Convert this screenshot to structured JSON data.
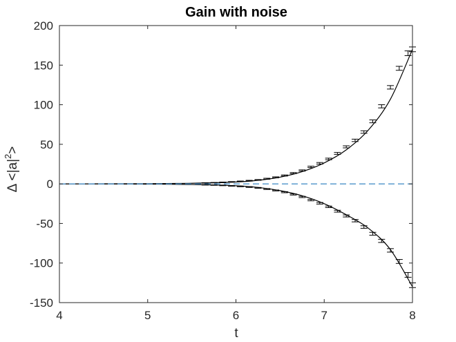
{
  "chart_data": {
    "type": "line",
    "title": "Gain with noise",
    "xlabel": "t",
    "ylabel": "Δ <|a|²>",
    "ylabel_parts": {
      "prefix": "Δ <|a|",
      "sup": "2",
      "suffix": ">"
    },
    "xlim": [
      4,
      8
    ],
    "ylim": [
      -150,
      200
    ],
    "xticks": [
      4,
      5,
      6,
      7,
      8
    ],
    "yticks": [
      -150,
      -100,
      -50,
      0,
      50,
      100,
      150,
      200
    ],
    "grid": false,
    "series": [
      {
        "style": "solid",
        "color": "#000000",
        "x": [
          4.0,
          4.5,
          5.0,
          5.5,
          6.0,
          6.25,
          6.5,
          6.75,
          7.0,
          7.25,
          7.5,
          7.75,
          8.0
        ],
        "y": [
          0.0,
          0.1,
          0.3,
          0.8,
          2.4,
          4.5,
          8.5,
          15.5,
          26.5,
          43.0,
          68.0,
          107.0,
          170.0
        ]
      },
      {
        "style": "solid",
        "color": "#000000",
        "x": [
          4.0,
          4.5,
          5.0,
          5.5,
          6.0,
          6.25,
          6.5,
          6.75,
          7.0,
          7.25,
          7.5,
          7.75,
          8.0
        ],
        "y": [
          0.0,
          -0.1,
          -0.3,
          -0.8,
          -2.4,
          -4.5,
          -8.5,
          -15.0,
          -25.0,
          -39.0,
          -56.0,
          -83.0,
          -130.0
        ]
      },
      {
        "style": "dashed",
        "color": "#4a90c8",
        "x": [
          4.0,
          8.0
        ],
        "y": [
          0.0,
          0.0
        ]
      }
    ],
    "errorbars": {
      "x": [
        5.65,
        5.75,
        5.85,
        5.95,
        6.05,
        6.15,
        6.25,
        6.35,
        6.45,
        6.55,
        6.65,
        6.75,
        6.85,
        6.95,
        7.05,
        7.15,
        7.25,
        7.35,
        7.45,
        7.55,
        7.65,
        7.75,
        7.85,
        7.95,
        8.0
      ],
      "upper": [
        1.2,
        1.5,
        1.9,
        2.5,
        3.2,
        4.0,
        5.0,
        6.5,
        8.3,
        10.6,
        13.6,
        16.9,
        21.5,
        26.0,
        31.5,
        38.5,
        46.8,
        55.0,
        65.5,
        79.0,
        98.0,
        122.0,
        146.0,
        165.0,
        170.0
      ],
      "lower": [
        -1.2,
        -1.5,
        -1.9,
        -2.5,
        -3.2,
        -4.0,
        -5.0,
        -6.5,
        -8.3,
        -10.5,
        -13.4,
        -16.5,
        -20.5,
        -24.5,
        -29.0,
        -34.5,
        -40.5,
        -46.5,
        -54.5,
        -63.0,
        -72.0,
        -84.0,
        -98.0,
        -115.0,
        -128.0
      ],
      "half_width": [
        0.3,
        0.3,
        0.4,
        0.4,
        0.4,
        0.5,
        0.5,
        0.6,
        0.6,
        0.7,
        0.7,
        0.8,
        0.9,
        1.0,
        1.0,
        1.2,
        1.3,
        1.5,
        1.6,
        1.8,
        2.0,
        2.2,
        2.5,
        3.0,
        3.0
      ]
    }
  }
}
